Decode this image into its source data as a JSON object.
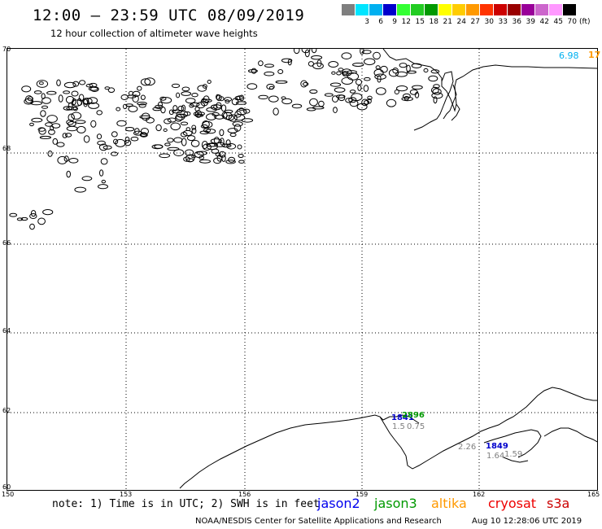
{
  "title": "12:00 – 23:59 UTC 08/09/2019",
  "subtitle": "12 hour collection of altimeter wave heights",
  "legend": {
    "colors": [
      "#7f7f7f",
      "#00e5ff",
      "#00b0f0",
      "#0000cc",
      "#33ff33",
      "#22cc22",
      "#009900",
      "#ffff00",
      "#ffcc00",
      "#ff9900",
      "#ff3300",
      "#cc0000",
      "#990000",
      "#990099",
      "#cc66cc",
      "#ff99ff",
      "#000000"
    ],
    "labels": [
      "",
      "3",
      "6",
      "9",
      "12",
      "15",
      "18",
      "21",
      "24",
      "27",
      "30",
      "33",
      "36",
      "39",
      "42",
      "45",
      "70"
    ],
    "unit": "(ft)"
  },
  "map": {
    "lat_labels": [
      "70",
      "68",
      "66",
      "64",
      "62",
      "60"
    ],
    "lon_labels": [
      "150",
      "153",
      "156",
      "159",
      "162",
      "165"
    ]
  },
  "corner_values": {
    "cyan_value": "6.98",
    "orange_value": "17"
  },
  "points": [
    {
      "text": "1841",
      "color": "#0000cc"
    },
    {
      "text": "2896",
      "color": "#009900"
    },
    {
      "text": "1.5",
      "color": "#7f7f7f"
    },
    {
      "text": "0.75",
      "color": "#7f7f7f"
    },
    {
      "text": "1849",
      "color": "#0000cc"
    },
    {
      "text": "2.26",
      "color": "#7f7f7f"
    },
    {
      "text": "1.64",
      "color": "#7f7f7f"
    },
    {
      "text": "1.59",
      "color": "#7f7f7f"
    }
  ],
  "note": "note: 1) Time is in UTC; 2) SWH is in feet",
  "satellites": [
    {
      "name": "jason2",
      "color": "#0000ee"
    },
    {
      "name": "jason3",
      "color": "#009900"
    },
    {
      "name": "altika",
      "color": "#ff9900"
    },
    {
      "name": "cryosat",
      "color": "#ee0000"
    },
    {
      "name": "s3a",
      "color": "#cc0000"
    }
  ],
  "footer": "NOAA/NESDIS Center for Satellite Applications and Research",
  "footer_date": "Aug 10 12:28:06 UTC 2019"
}
